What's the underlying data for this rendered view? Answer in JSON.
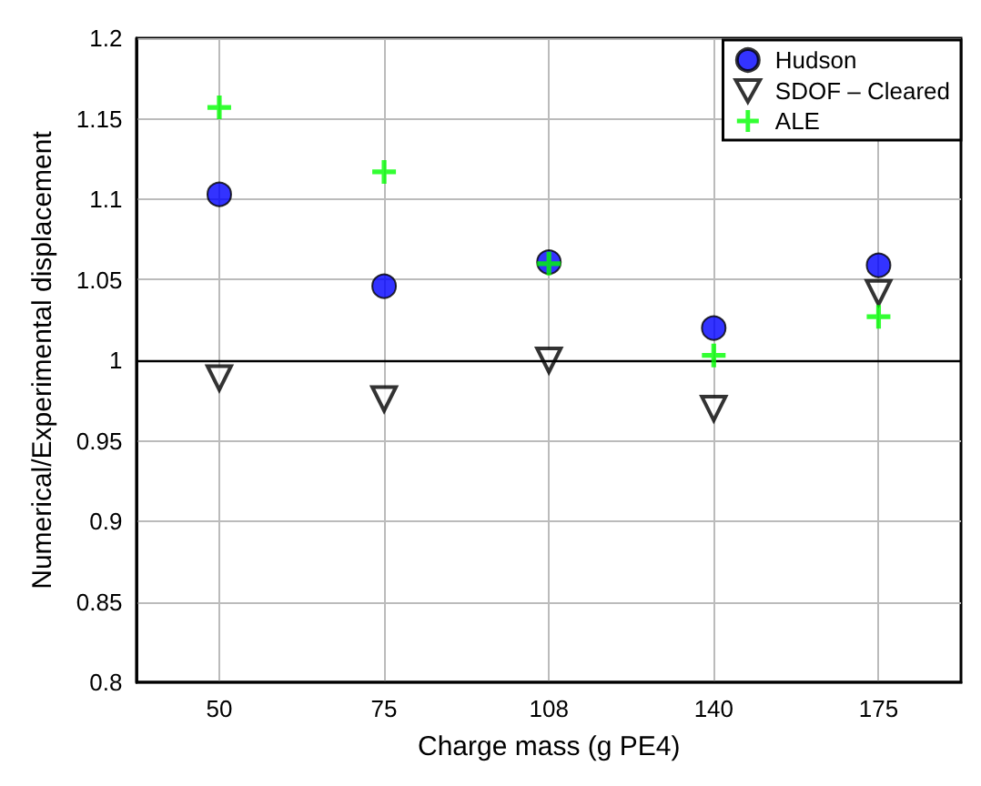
{
  "chart_data": {
    "type": "scatter",
    "xlabel": "Charge mass (g PE4)",
    "ylabel": "Numerical/Experimental displacement",
    "categories": [
      "50",
      "75",
      "108",
      "140",
      "175"
    ],
    "series": [
      {
        "name": "Hudson",
        "color": "#0000ff",
        "marker": "circle",
        "values": [
          1.103,
          1.046,
          1.061,
          1.02,
          1.059
        ]
      },
      {
        "name": "SDOF – Cleared",
        "color": "#000000",
        "marker": "triangle",
        "values": [
          0.989,
          0.976,
          1.0,
          0.97,
          1.042
        ]
      },
      {
        "name": "ALE",
        "color": "#00ff00",
        "marker": "cross",
        "values": [
          1.157,
          1.117,
          1.06,
          1.003,
          1.027
        ]
      }
    ],
    "ylim": [
      0.8,
      1.2
    ],
    "yticks": [
      0.8,
      0.85,
      0.9,
      0.95,
      1,
      1.05,
      1.1,
      1.15,
      1.2
    ],
    "ref_lines": [
      {
        "axis": "y",
        "value": 1,
        "color": "#000000"
      }
    ],
    "grid": true,
    "legend": "top right"
  }
}
